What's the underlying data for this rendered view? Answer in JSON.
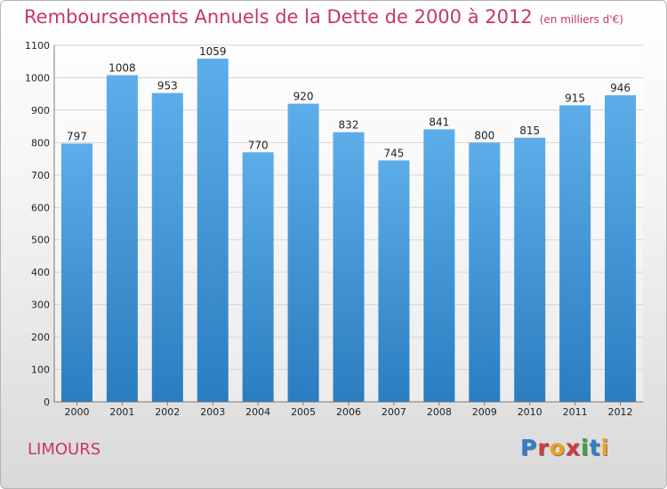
{
  "header": {
    "title": "Remboursements Annuels de la Dette de 2000 à 2012",
    "subtitle": "(en milliers d'€)"
  },
  "footer": {
    "commune": "LIMOURS",
    "logo": "Proxiti"
  },
  "colors": {
    "accent": "#c8356a",
    "bar_light": "#5dadea",
    "bar_dark": "#2a7dbf",
    "logo_letters": [
      "#2f7fcc",
      "#d23b3b",
      "#f0a020",
      "#d23b3b",
      "#3aa53a",
      "#2f7fcc",
      "#f0a020"
    ]
  },
  "chart_data": {
    "type": "bar",
    "title": "Remboursements Annuels de la Dette de 2000 à 2012",
    "subtitle": "(en milliers d'€)",
    "categories": [
      "2000",
      "2001",
      "2002",
      "2003",
      "2004",
      "2005",
      "2006",
      "2007",
      "2008",
      "2009",
      "2010",
      "2011",
      "2012"
    ],
    "values": [
      797,
      1008,
      953,
      1059,
      770,
      920,
      832,
      745,
      841,
      800,
      815,
      915,
      946
    ],
    "data_labels": [
      "797",
      "1008",
      "953",
      "1059",
      "770",
      "920",
      "832",
      "745",
      "841",
      "800",
      "815",
      "915",
      "946"
    ],
    "ylim": [
      0,
      1100
    ],
    "yticks": [
      "0",
      "100",
      "200",
      "300",
      "400",
      "500",
      "600",
      "700",
      "800",
      "900",
      "1000",
      "1100"
    ],
    "xlabel": "",
    "ylabel": "",
    "grid": true
  }
}
